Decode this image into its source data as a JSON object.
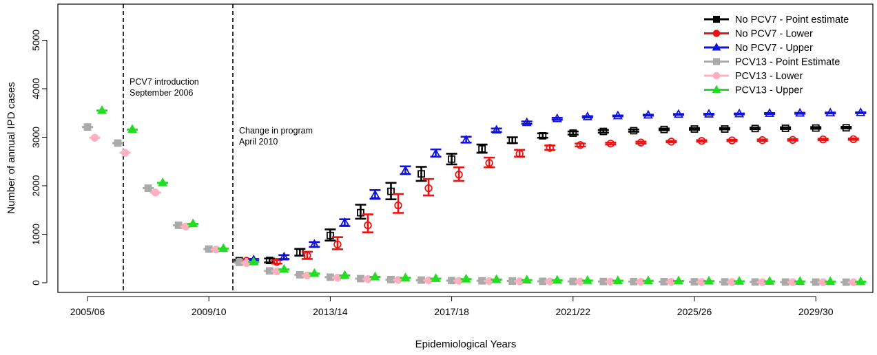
{
  "chart_data": {
    "type": "scatter",
    "xlabel": "Epidemiological Years",
    "ylabel": "Number of annual IPD cases",
    "x_tick_labels": [
      "2005/06",
      "2009/10",
      "2013/14",
      "2017/18",
      "2021/22",
      "2025/26",
      "2029/30"
    ],
    "y_ticks": [
      0,
      1000,
      2000,
      3000,
      4000,
      5000
    ],
    "ylim": [
      0,
      5000
    ],
    "grid": false,
    "legend_position": "top-right",
    "annotations": [
      {
        "lines": [
          "PCV7 introduction",
          "September 2006"
        ]
      },
      {
        "lines": [
          "Change in program",
          "April 2010"
        ]
      }
    ],
    "years": [
      "2005/06",
      "2006/07",
      "2007/08",
      "2008/09",
      "2009/10",
      "2010/11",
      "2011/12",
      "2012/13",
      "2013/14",
      "2014/15",
      "2015/16",
      "2016/17",
      "2017/18",
      "2018/19",
      "2019/20",
      "2020/21",
      "2021/22",
      "2022/23",
      "2023/24",
      "2024/25",
      "2025/26",
      "2026/27",
      "2027/28",
      "2028/29",
      "2029/30",
      "2030/31"
    ],
    "series": [
      {
        "name": "No PCV7 - Point estimate",
        "color": "#000000",
        "marker": "square",
        "values": [
          null,
          null,
          null,
          null,
          null,
          455,
          460,
          625,
          975,
          1445,
          1885,
          2245,
          2550,
          2760,
          2935,
          3030,
          3085,
          3120,
          3135,
          3160,
          3170,
          3170,
          3180,
          3185,
          3190,
          3195
        ],
        "lower": [
          null,
          null,
          null,
          null,
          null,
          435,
          420,
          560,
          870,
          1320,
          1720,
          2100,
          2440,
          2680,
          2880,
          2990,
          3055,
          3095,
          3115,
          3145,
          3155,
          3160,
          3165,
          3170,
          3175,
          3180
        ],
        "upper": [
          null,
          null,
          null,
          null,
          null,
          475,
          500,
          700,
          1100,
          1610,
          2060,
          2390,
          2660,
          2850,
          3000,
          3080,
          3120,
          3150,
          3160,
          3180,
          3190,
          3190,
          3200,
          3205,
          3210,
          3215
        ]
      },
      {
        "name": "No PCV7 - Lower",
        "color": "#ee1111",
        "marker": "circle",
        "values": [
          null,
          null,
          null,
          null,
          null,
          455,
          430,
          560,
          790,
          1185,
          1595,
          1950,
          2230,
          2470,
          2660,
          2780,
          2840,
          2870,
          2890,
          2910,
          2925,
          2935,
          2940,
          2945,
          2955,
          2960
        ],
        "lower": [
          null,
          null,
          null,
          null,
          null,
          440,
          395,
          490,
          690,
          1040,
          1440,
          1800,
          2100,
          2380,
          2600,
          2740,
          2810,
          2850,
          2870,
          2895,
          2910,
          2920,
          2925,
          2930,
          2940,
          2945
        ],
        "upper": [
          null,
          null,
          null,
          null,
          null,
          470,
          470,
          640,
          940,
          1410,
          1830,
          2140,
          2380,
          2580,
          2740,
          2830,
          2870,
          2890,
          2910,
          2925,
          2940,
          2950,
          2955,
          2960,
          2970,
          2975
        ]
      },
      {
        "name": "No PCV7 - Upper",
        "color": "#1111dd",
        "marker": "triangle",
        "values": [
          null,
          null,
          null,
          null,
          null,
          470,
          530,
          790,
          1240,
          1810,
          2310,
          2660,
          2940,
          3145,
          3300,
          3380,
          3420,
          3440,
          3455,
          3470,
          3475,
          3480,
          3490,
          3495,
          3500,
          3505
        ],
        "lower": [
          null,
          null,
          null,
          null,
          null,
          450,
          490,
          740,
          1170,
          1730,
          2240,
          2600,
          2890,
          3110,
          3275,
          3360,
          3405,
          3430,
          3445,
          3460,
          3465,
          3470,
          3480,
          3485,
          3490,
          3495
        ],
        "upper": [
          null,
          null,
          null,
          null,
          null,
          490,
          570,
          840,
          1310,
          1910,
          2400,
          2750,
          3010,
          3180,
          3325,
          3400,
          3435,
          3450,
          3465,
          3480,
          3485,
          3490,
          3500,
          3505,
          3510,
          3515
        ]
      },
      {
        "name": "PCV13 - Point Estimate",
        "color": "#aaaaaa",
        "marker": "square",
        "values": [
          3210,
          2880,
          1950,
          1185,
          695,
          420,
          245,
          165,
          115,
          85,
          65,
          55,
          45,
          40,
          35,
          30,
          28,
          26,
          24,
          22,
          20,
          18,
          16,
          15,
          14,
          13
        ]
      },
      {
        "name": "PCV13 - Lower",
        "color": "#ffb0c0",
        "marker": "circle",
        "values": [
          2990,
          2680,
          1860,
          1160,
          685,
          405,
          235,
          150,
          105,
          75,
          60,
          50,
          40,
          35,
          30,
          28,
          25,
          23,
          21,
          19,
          17,
          15,
          14,
          13,
          12,
          11
        ]
      },
      {
        "name": "PCV13 - Upper",
        "color": "#22dd22",
        "marker": "triangle",
        "values": [
          3550,
          3160,
          2060,
          1215,
          705,
          430,
          275,
          190,
          150,
          120,
          100,
          85,
          75,
          65,
          55,
          50,
          45,
          42,
          39,
          36,
          33,
          30,
          28,
          26,
          24,
          22
        ]
      }
    ]
  }
}
